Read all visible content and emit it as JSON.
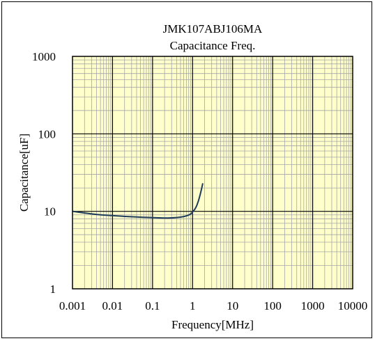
{
  "chart_data": {
    "type": "line",
    "title": "JMK107ABJ106MA",
    "subtitle": "Capacitance Freq.",
    "xlabel": "Frequency[MHz]",
    "ylabel": "Capacitance[uF]",
    "x_scale": "log",
    "y_scale": "log",
    "xlim": [
      0.001,
      10000
    ],
    "ylim": [
      1,
      1000
    ],
    "x_ticks": [
      "0.001",
      "0.01",
      "0.1",
      "1",
      "10",
      "100",
      "1000",
      "10000"
    ],
    "y_ticks": [
      "1000",
      "100",
      "10",
      "1"
    ],
    "grid": true,
    "series": [
      {
        "color": "#1f3b5a",
        "x": [
          0.001,
          0.002,
          0.005,
          0.01,
          0.02,
          0.05,
          0.1,
          0.2,
          0.3,
          0.5,
          0.7,
          0.9,
          1.0,
          1.2,
          1.4,
          1.6,
          1.8
        ],
        "y": [
          10.0,
          9.5,
          9.0,
          8.8,
          8.6,
          8.4,
          8.3,
          8.2,
          8.2,
          8.4,
          8.7,
          9.2,
          9.8,
          11.0,
          13.5,
          17.5,
          23.0
        ]
      }
    ]
  },
  "colors": {
    "plot_background": "#ffffcc",
    "major_grid": "#000000",
    "minor_grid": "#a6a6a6",
    "frame": "#000000"
  }
}
